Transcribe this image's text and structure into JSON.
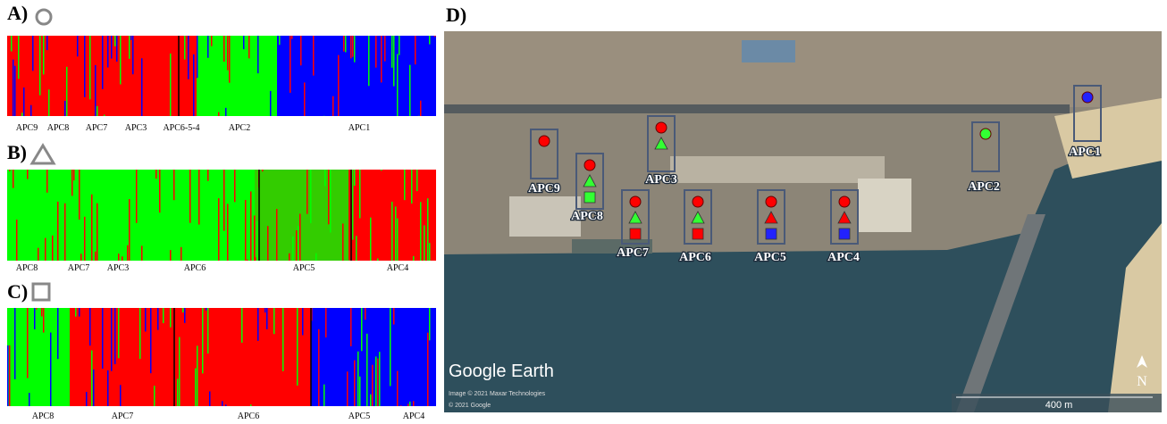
{
  "panels": [
    {
      "label": "A)",
      "groups": [
        "APC9",
        "APC8",
        "APC7",
        "APC3",
        "APC6-5-4",
        "APC2",
        "APC1"
      ]
    },
    {
      "label": "B)",
      "groups": [
        "APC8",
        "APC7",
        "APC3",
        "APC6",
        "APC5",
        "APC4"
      ]
    },
    {
      "label": "C)",
      "groups": [
        "APC8",
        "APC7",
        "APC6",
        "APC5",
        "APC4"
      ]
    }
  ],
  "map": {
    "label": "D)",
    "sites": [
      "APC9",
      "APC8",
      "APC3",
      "APC7",
      "APC6",
      "APC5",
      "APC4",
      "APC2",
      "APC1"
    ],
    "watermark": "Google Earth",
    "credits": [
      "Image © 2021 Maxar Technologies",
      "© 2021 Google"
    ],
    "scale": "400 m",
    "north": "N"
  }
}
